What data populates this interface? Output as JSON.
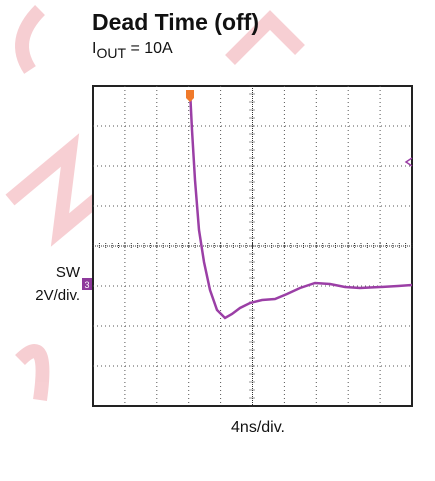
{
  "title": "Dead Time (off)",
  "subtitle": {
    "symbol": "I",
    "subscript": "OUT",
    "rest": " = 10A"
  },
  "channel": {
    "name": "SW",
    "scale": "2V/div.",
    "marker": "3"
  },
  "time_scale": "4ns/div."
}
